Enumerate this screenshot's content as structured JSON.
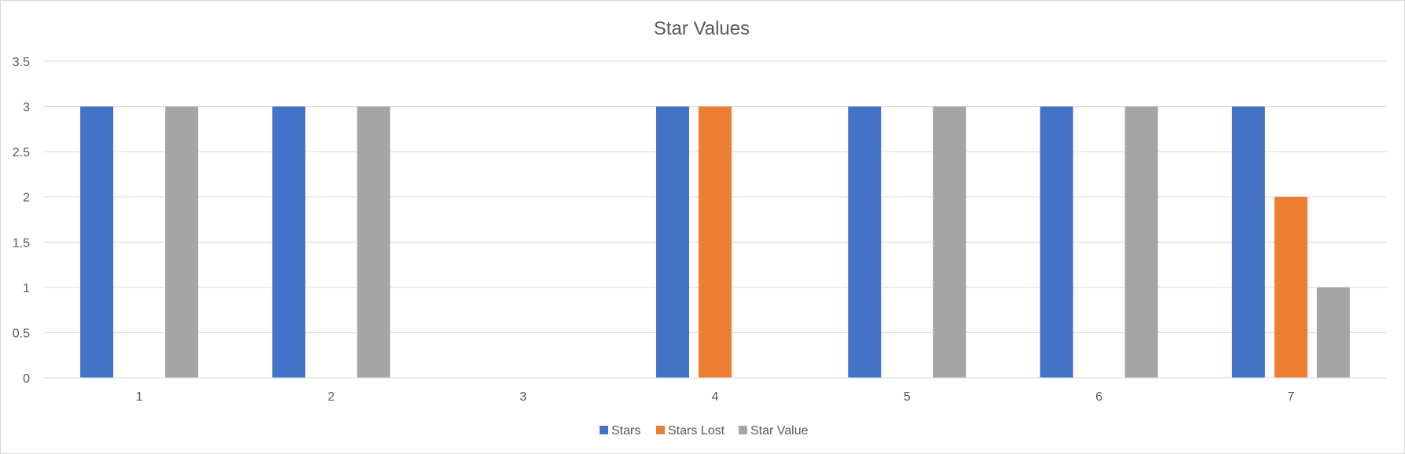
{
  "chart_data": {
    "type": "bar",
    "title": "Star Values",
    "xlabel": "",
    "ylabel": "",
    "categories": [
      "1",
      "2",
      "3",
      "4",
      "5",
      "6",
      "7"
    ],
    "y_ticks": [
      "0",
      "0.5",
      "1",
      "1.5",
      "2",
      "2.5",
      "3",
      "3.5"
    ],
    "ylim": [
      0,
      3.5
    ],
    "grid": true,
    "legend_position": "bottom",
    "series": [
      {
        "name": "Stars",
        "color": "#4472C4",
        "values": [
          3,
          3,
          null,
          3,
          3,
          3,
          3
        ]
      },
      {
        "name": "Stars Lost",
        "color": "#ED7D31",
        "values": [
          null,
          null,
          null,
          3,
          null,
          null,
          2
        ]
      },
      {
        "name": "Star Value",
        "color": "#A5A5A5",
        "values": [
          3,
          3,
          null,
          null,
          3,
          3,
          1
        ]
      }
    ]
  }
}
